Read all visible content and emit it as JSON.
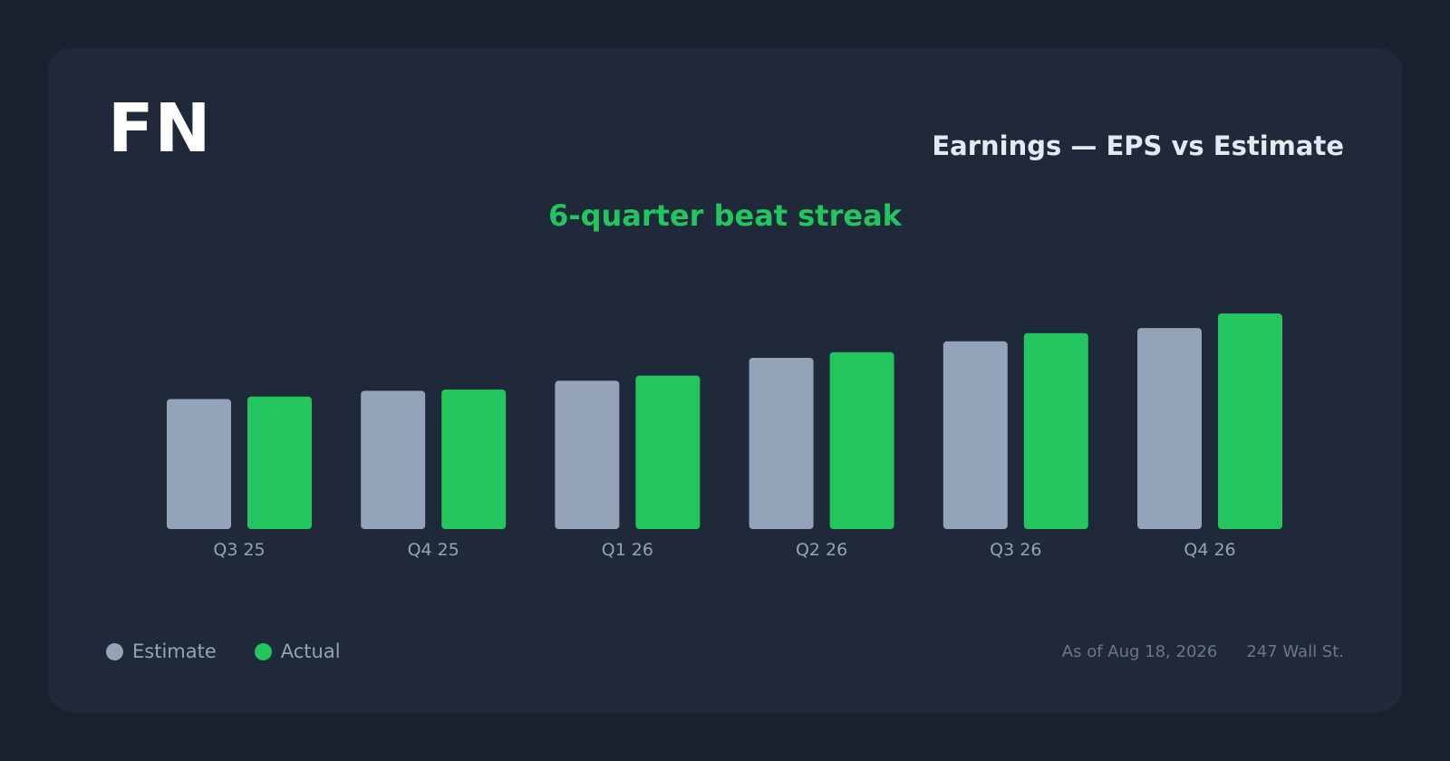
{
  "header": {
    "ticker": "FN",
    "title": "Earnings — EPS vs Estimate",
    "subtitle": "6-quarter beat streak"
  },
  "legend": {
    "estimate_label": "Estimate",
    "actual_label": "Actual"
  },
  "footer": {
    "as_of": "As of Aug 18, 2026",
    "source": "247 Wall St."
  },
  "colors": {
    "estimate": "#94a3b8",
    "actual": "#22c55e",
    "tick_label": "#94a3b8"
  },
  "chart_data": {
    "type": "bar",
    "categories": [
      "Q3 25",
      "Q4 25",
      "Q1 26",
      "Q2 26",
      "Q3 26",
      "Q4 26"
    ],
    "series": [
      {
        "name": "Estimate",
        "values": [
          2.05,
          2.18,
          2.34,
          2.7,
          2.96,
          3.17
        ]
      },
      {
        "name": "Actual",
        "values": [
          2.09,
          2.2,
          2.42,
          2.79,
          3.09,
          3.4
        ]
      }
    ],
    "title": "Earnings — EPS vs Estimate",
    "xlabel": "",
    "ylabel": "",
    "ylim": [
      0,
      3.4
    ],
    "grid": false,
    "legend_position": "bottom-left"
  }
}
